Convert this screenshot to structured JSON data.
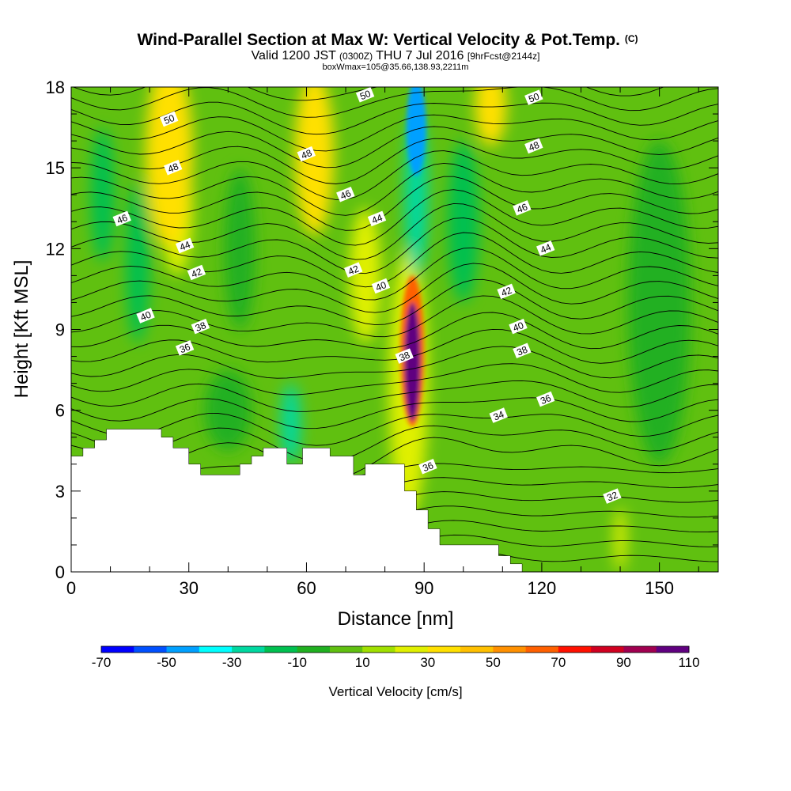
{
  "chart_data": {
    "type": "heatmap",
    "title_main": "Wind-Parallel Section at Max W: Vertical Velocity & Pot.Temp.",
    "title_mark": "(C)",
    "subtitle_parts": [
      "Valid 1200 JST",
      "(0300Z)",
      "THU 7 Jul 2016",
      "[9hrFcst@2144z]"
    ],
    "subtitle2": "boxWmax=105@35.66,138.93,2211m",
    "xlabel": "Distance [nm]",
    "ylabel": "Height [Kft MSL]",
    "xlim": [
      0,
      165
    ],
    "ylim": [
      0,
      18
    ],
    "x_ticks": [
      0,
      30,
      60,
      90,
      120,
      150
    ],
    "y_ticks": [
      0,
      3,
      6,
      9,
      12,
      15,
      18
    ],
    "colorbar": {
      "label": "Vertical Velocity [cm/s]",
      "levels": [
        -70,
        -60,
        -50,
        -40,
        -30,
        -20,
        -10,
        0,
        10,
        20,
        30,
        40,
        50,
        60,
        70,
        80,
        90,
        100,
        110
      ],
      "tick_labels": [
        -70,
        -50,
        -30,
        -10,
        10,
        30,
        50,
        70,
        90,
        110
      ],
      "colors": [
        "#0000ff",
        "#0050ff",
        "#00a0ff",
        "#00ffff",
        "#00d8a0",
        "#00c050",
        "#20b020",
        "#60c010",
        "#a0e000",
        "#e0f000",
        "#ffe000",
        "#ffc000",
        "#ff9000",
        "#ff6000",
        "#ff1000",
        "#d00020",
        "#a00050",
        "#600080"
      ]
    },
    "terrain_profile": {
      "x": [
        0,
        3,
        3,
        6,
        6,
        9,
        9,
        15,
        15,
        23,
        23,
        26,
        26,
        30,
        30,
        33,
        33,
        43,
        43,
        46,
        46,
        49,
        49,
        52,
        52,
        55,
        55,
        59,
        59,
        66,
        66,
        72,
        72,
        75,
        75,
        78,
        78,
        85,
        85,
        88,
        88,
        91,
        91,
        94,
        94,
        109,
        109,
        112,
        112,
        115,
        115,
        165
      ],
      "y": [
        4.3,
        4.3,
        4.6,
        4.6,
        4.9,
        4.9,
        5.3,
        5.3,
        5.3,
        5.3,
        5.0,
        5.0,
        4.6,
        4.6,
        4.0,
        4.0,
        3.6,
        3.6,
        4.0,
        4.0,
        4.3,
        4.3,
        4.6,
        4.6,
        4.6,
        4.6,
        4.0,
        4.0,
        4.6,
        4.6,
        4.3,
        4.3,
        3.6,
        3.6,
        4.0,
        4.0,
        4.0,
        4.0,
        3.0,
        3.0,
        2.3,
        2.3,
        1.6,
        1.6,
        1.0,
        1.0,
        0.6,
        0.6,
        0.3,
        0.3,
        0.0,
        0.0
      ]
    },
    "w_cells": [
      {
        "x": 25,
        "y": 15.5,
        "rx": 6,
        "ry": 3.5,
        "w": 30
      },
      {
        "x": 27,
        "y": 13.5,
        "rx": 4,
        "ry": 2.5,
        "w": 20
      },
      {
        "x": 62,
        "y": 15.5,
        "rx": 5,
        "ry": 3,
        "w": 30
      },
      {
        "x": 75,
        "y": 11,
        "rx": 4,
        "ry": 2.5,
        "w": 20
      },
      {
        "x": 107,
        "y": 17.3,
        "rx": 4,
        "ry": 1.5,
        "w": 30
      },
      {
        "x": 87,
        "y": 7.8,
        "rx": 2,
        "ry": 2.2,
        "w": 105
      },
      {
        "x": 87,
        "y": 8.2,
        "rx": 3,
        "ry": 2.8,
        "w": 60
      },
      {
        "x": 86,
        "y": 7,
        "rx": 5,
        "ry": 5,
        "w": 20
      },
      {
        "x": 88,
        "y": 16.5,
        "rx": 2.5,
        "ry": 1.8,
        "w": -45
      },
      {
        "x": 88,
        "y": 14,
        "rx": 3,
        "ry": 3,
        "w": -25
      },
      {
        "x": 56,
        "y": 5.5,
        "rx": 2.5,
        "ry": 1.5,
        "w": -30
      },
      {
        "x": 17,
        "y": 11.5,
        "rx": 3,
        "ry": 3,
        "w": -20
      },
      {
        "x": 8,
        "y": 14,
        "rx": 3,
        "ry": 2.5,
        "w": -15
      },
      {
        "x": 43,
        "y": 12,
        "rx": 4,
        "ry": 3,
        "w": -10
      },
      {
        "x": 40,
        "y": 6,
        "rx": 6,
        "ry": 1.5,
        "w": -5
      },
      {
        "x": 100,
        "y": 13,
        "rx": 4,
        "ry": 3,
        "w": -15
      },
      {
        "x": 140,
        "y": 1.2,
        "rx": 1.5,
        "ry": 1.2,
        "w": 20
      },
      {
        "x": 150,
        "y": 10,
        "rx": 8,
        "ry": 6,
        "w": -5
      }
    ],
    "theta_labels": [
      {
        "text": "50",
        "x": 25,
        "y": 16.8
      },
      {
        "text": "48",
        "x": 26,
        "y": 15.0
      },
      {
        "text": "46",
        "x": 13,
        "y": 13.1
      },
      {
        "text": "44",
        "x": 29,
        "y": 12.1
      },
      {
        "text": "42",
        "x": 32,
        "y": 11.1
      },
      {
        "text": "40",
        "x": 19,
        "y": 9.5
      },
      {
        "text": "38",
        "x": 33,
        "y": 9.1
      },
      {
        "text": "36",
        "x": 29,
        "y": 8.3
      },
      {
        "text": "50",
        "x": 75,
        "y": 17.7
      },
      {
        "text": "48",
        "x": 60,
        "y": 15.5
      },
      {
        "text": "46",
        "x": 70,
        "y": 14.0
      },
      {
        "text": "44",
        "x": 78,
        "y": 13.1
      },
      {
        "text": "42",
        "x": 72,
        "y": 11.2
      },
      {
        "text": "40",
        "x": 79,
        "y": 10.6
      },
      {
        "text": "38",
        "x": 85,
        "y": 8.0
      },
      {
        "text": "36",
        "x": 91,
        "y": 3.9
      },
      {
        "text": "50",
        "x": 118,
        "y": 17.6
      },
      {
        "text": "48",
        "x": 118,
        "y": 15.8
      },
      {
        "text": "46",
        "x": 115,
        "y": 13.5
      },
      {
        "text": "44",
        "x": 121,
        "y": 12.0
      },
      {
        "text": "42",
        "x": 111,
        "y": 10.4
      },
      {
        "text": "40",
        "x": 114,
        "y": 9.1
      },
      {
        "text": "38",
        "x": 115,
        "y": 8.2
      },
      {
        "text": "36",
        "x": 121,
        "y": 6.4
      },
      {
        "text": "34",
        "x": 109,
        "y": 5.8
      },
      {
        "text": "32",
        "x": 138,
        "y": 2.8
      }
    ]
  }
}
